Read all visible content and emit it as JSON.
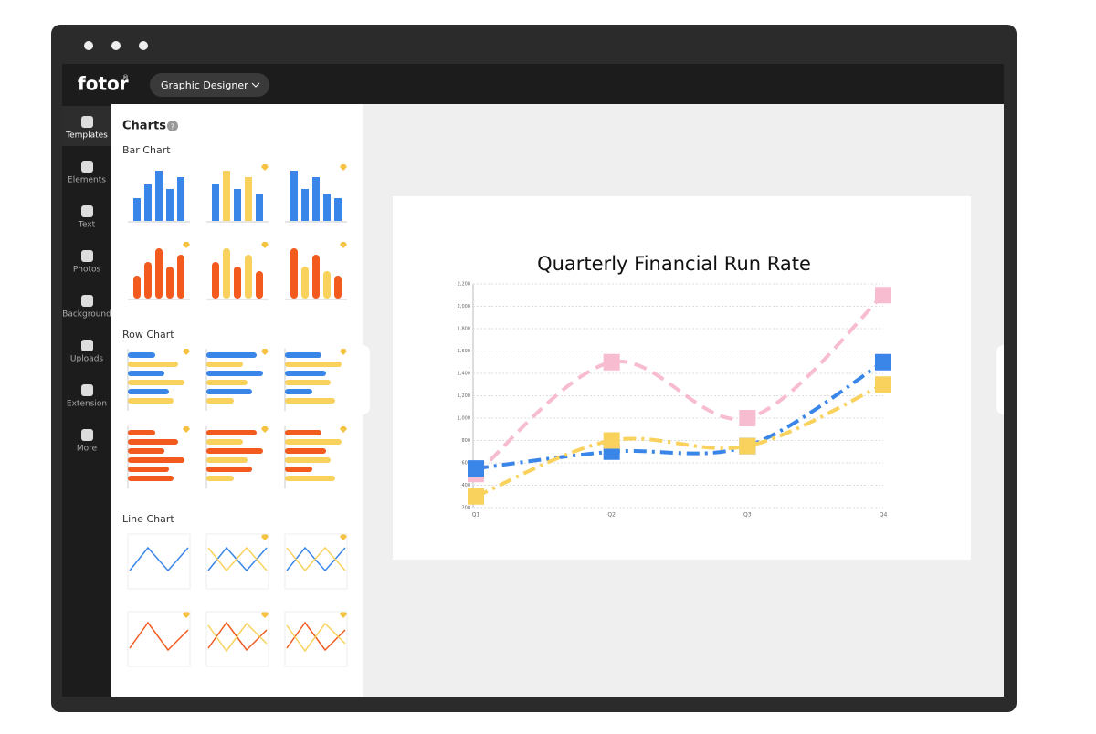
{
  "app": {
    "logo": "fotor",
    "logo_mark": "®",
    "mode": "Graphic Designer"
  },
  "sidebar": {
    "items": [
      "Templates",
      "Elements",
      "Text",
      "Photos",
      "Background",
      "Uploads",
      "Extension",
      "More"
    ]
  },
  "panel": {
    "title": "Charts",
    "sections": [
      "Bar Chart",
      "Row Chart",
      "Line Chart"
    ]
  },
  "chart_data": {
    "type": "line",
    "title": "Quarterly Financial Run Rate",
    "categories": [
      "Q1",
      "Q2",
      "Q3",
      "Q4"
    ],
    "series": [
      {
        "color": "#f7bcd0",
        "style": "dashed",
        "values": [
          500,
          1500,
          1000,
          2100
        ]
      },
      {
        "color": "#3a86e8",
        "style": "dashdot",
        "values": [
          550,
          700,
          750,
          1500
        ]
      },
      {
        "color": "#f9d25e",
        "style": "dashdot",
        "values": [
          300,
          800,
          750,
          1300
        ]
      }
    ],
    "ylim": [
      200,
      2200
    ],
    "yticks": [
      200,
      400,
      600,
      800,
      {
        "value": 1000,
        "label": "1,000"
      },
      {
        "value": 1200,
        "label": "1,200"
      },
      {
        "value": 1400,
        "label": "1,400"
      },
      {
        "value": 1600,
        "label": "1,600"
      },
      {
        "value": 1800,
        "label": "1,800"
      },
      {
        "value": 2000,
        "label": "2,000"
      },
      {
        "value": 2200,
        "label": "2,200"
      }
    ],
    "grid": true
  }
}
